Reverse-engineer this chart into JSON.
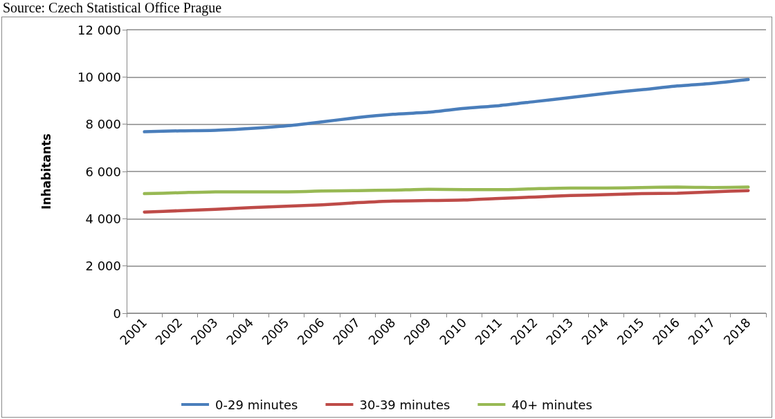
{
  "chart_data": {
    "type": "line",
    "ylabel": "Inhabitants",
    "annotations": [
      "Source: Czech Statistical Office Prague"
    ],
    "categories": [
      "2001",
      "2002",
      "2003",
      "2004",
      "2005",
      "2006",
      "2007",
      "2008",
      "2009",
      "2010",
      "2011",
      "2012",
      "2013",
      "2014",
      "2015",
      "2016",
      "2017",
      "2018"
    ],
    "series": [
      {
        "name": "0-29 minutes",
        "color": "#4a7ebb",
        "values": [
          7680,
          7720,
          7740,
          7820,
          7930,
          8100,
          8280,
          8420,
          8510,
          8670,
          8790,
          8960,
          9130,
          9310,
          9460,
          9620,
          9730,
          9890
        ]
      },
      {
        "name": "30-39 minutes",
        "color": "#be4b48",
        "values": [
          4280,
          4340,
          4400,
          4470,
          4530,
          4590,
          4680,
          4750,
          4770,
          4790,
          4860,
          4920,
          4980,
          5020,
          5060,
          5080,
          5140,
          5190
        ]
      },
      {
        "name": "40+ minutes",
        "color": "#98b954",
        "values": [
          5060,
          5100,
          5140,
          5140,
          5140,
          5170,
          5190,
          5210,
          5250,
          5230,
          5230,
          5270,
          5300,
          5300,
          5320,
          5340,
          5320,
          5340
        ]
      }
    ],
    "ylim": [
      0,
      12000
    ],
    "yticks": [
      0,
      {
        "value": 2000,
        "label": "2 000"
      },
      {
        "value": 4000,
        "label": "4 000"
      },
      {
        "value": 6000,
        "label": "6 000"
      },
      {
        "value": 8000,
        "label": "8 000"
      },
      {
        "value": 10000,
        "label": "10 000"
      },
      {
        "value": 12000,
        "label": "12 000"
      }
    ],
    "grid": "y",
    "legend": "bottom",
    "marker": "none",
    "line_style": "solid"
  }
}
